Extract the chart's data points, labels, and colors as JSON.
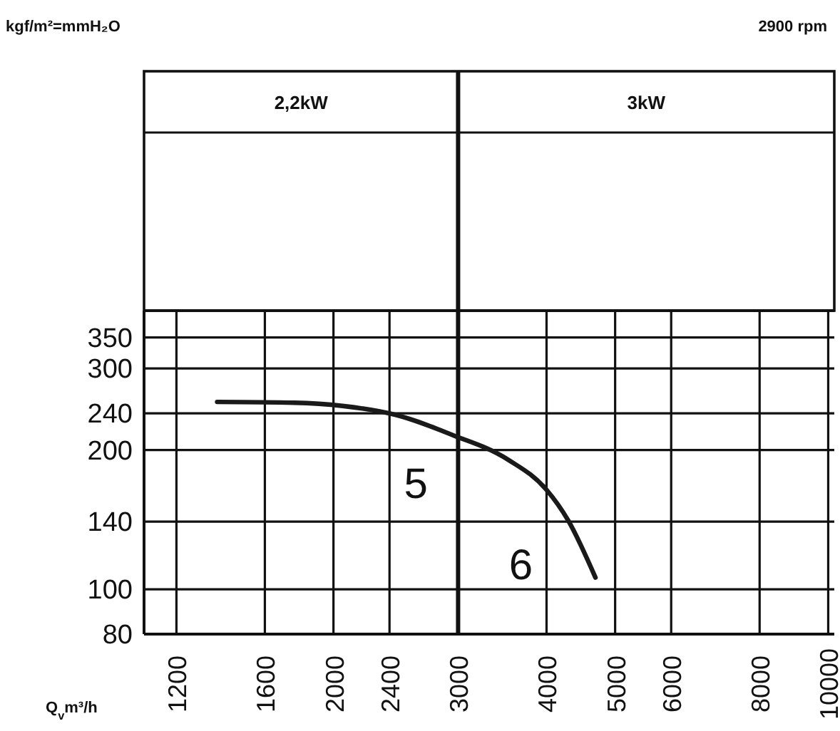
{
  "chart_data": {
    "type": "line",
    "subtitle": "2900 rpm",
    "xlabel": "Q$_{v}$m³/h",
    "series": [
      {
        "name": "5",
        "color": "#1a1a1a",
        "x": [
          1370,
          1760,
          2060,
          2450,
          3000
        ],
        "values": [
          254,
          253,
          249,
          238,
          213
        ]
      },
      {
        "name": "6",
        "color": "#1a1a1a",
        "x": [
          3000,
          3540,
          4000,
          4290,
          4690
        ],
        "values": [
          213,
          190,
          164,
          141,
          106
        ]
      }
    ],
    "log": "xy",
    "xlim": [
      1080,
      10200
    ],
    "ylim": [
      80,
      400
    ],
    "xticks": [
      1200,
      1600,
      2000,
      2400,
      3000,
      4000,
      5000,
      6000,
      8000,
      10000
    ],
    "yticks": [
      80,
      100,
      140,
      200,
      240,
      300,
      350
    ],
    "grid": true,
    "marker": "none",
    "line_style": "solid",
    "ref_lines": [
      {
        "axis": "x",
        "value": 3000
      }
    ],
    "annotations": [
      "kgf/m²=mmH₂O",
      "2,2kW",
      "3kW"
    ]
  }
}
